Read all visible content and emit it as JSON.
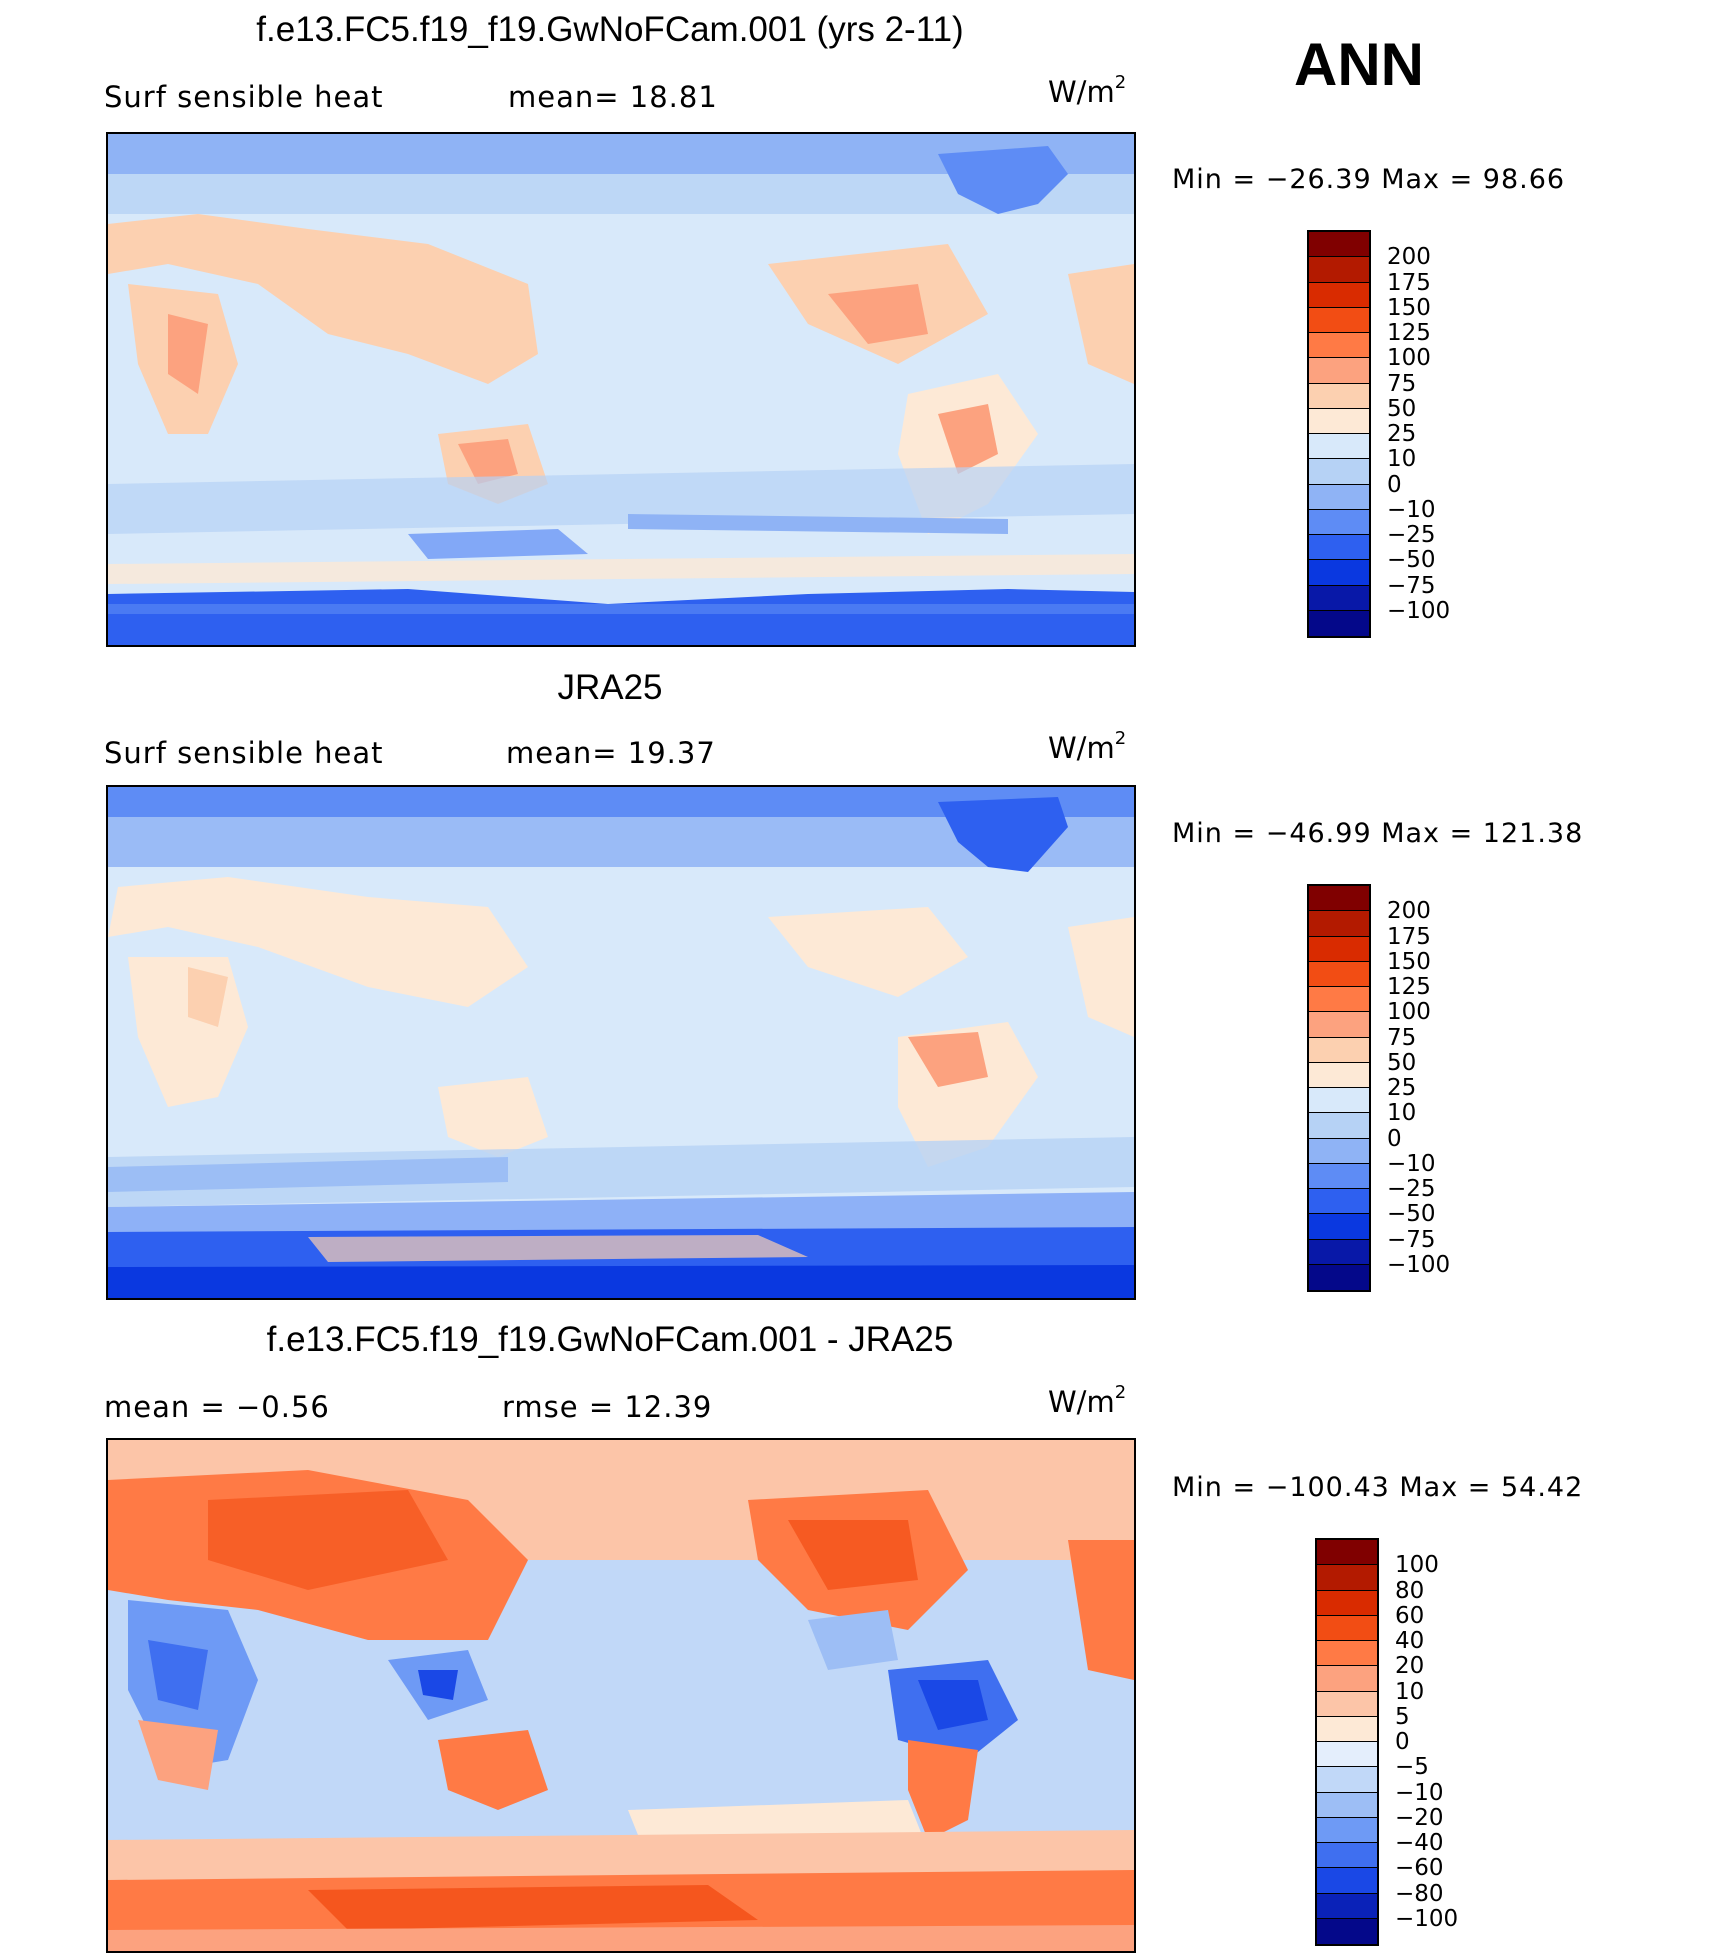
{
  "season": "ANN",
  "units": {
    "base": "W/m",
    "exp": "2"
  },
  "panels": [
    {
      "title": "f.e13.FC5.f19_f19.GwNoFCam.001 (yrs 2-11)",
      "left_stat": "Surf  sensible  heat",
      "mid_stat": "mean=   18.81",
      "minmax": "Min  =  −26.39  Max  =    98.66",
      "min": -26.39,
      "max": 98.66,
      "mean": 18.81
    },
    {
      "title": "JRA25",
      "left_stat": "Surf  sensible  heat",
      "mid_stat": "mean=   19.37",
      "minmax": "Min  =  −46.99  Max  =  121.38",
      "min": -46.99,
      "max": 121.38,
      "mean": 19.37
    },
    {
      "title": "f.e13.FC5.f19_f19.GwNoFCam.001 - JRA25",
      "left_stat": "mean  =    −0.56",
      "mid_stat": "rmse  =    12.39",
      "minmax": "Min  =  −100.43  Max  =    54.42",
      "min": -100.43,
      "max": 54.42,
      "mean": -0.56,
      "rmse": 12.39
    }
  ],
  "colorbar_main": {
    "labels": [
      "200",
      "175",
      "150",
      "125",
      "100",
      "75",
      "50",
      "25",
      "10",
      "0",
      "−10",
      "−25",
      "−50",
      "−75",
      "−100"
    ],
    "colors": [
      "#800000",
      "#b31a00",
      "#d92b00",
      "#f24d14",
      "#ff7a45",
      "#fca27f",
      "#fcd0b0",
      "#fde9d6",
      "#d8e9fa",
      "#b6d2f5",
      "#8fb3f5",
      "#5e8cf5",
      "#2e60f0",
      "#0a38e0",
      "#0818a8",
      "#04088a"
    ]
  },
  "colorbar_diff": {
    "labels": [
      "100",
      "80",
      "60",
      "40",
      "20",
      "10",
      "5",
      "0",
      "−5",
      "−10",
      "−20",
      "−40",
      "−60",
      "−80",
      "−100"
    ],
    "colors": [
      "#800000",
      "#b31a00",
      "#d92b00",
      "#f24d14",
      "#ff7a45",
      "#fca27f",
      "#fcc5a8",
      "#fde9d6",
      "#e4eefc",
      "#c1d8f8",
      "#9dbef5",
      "#6e9af5",
      "#3f6ff0",
      "#1a48e6",
      "#0a22b8",
      "#04088a"
    ]
  }
}
